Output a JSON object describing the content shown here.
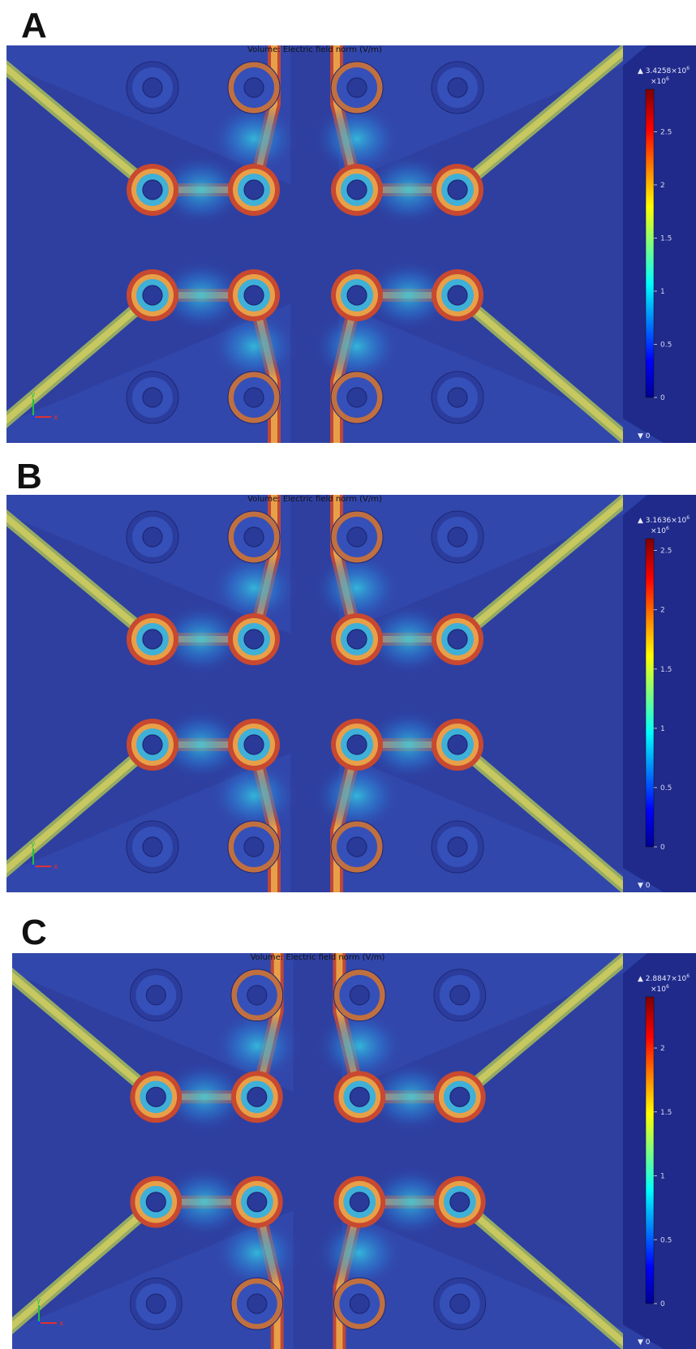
{
  "panels": [
    {
      "letter": "A",
      "title": "Volume: Electric field norm (V/m)",
      "cb_max": "▲ 3.4258×10",
      "cb_max_exp": "6",
      "cb_mult": "×10",
      "cb_mult_exp": "6",
      "cb_min": "▼ 0",
      "ticks": [
        {
          "label": "2.5",
          "value": 2.5
        },
        {
          "label": "2",
          "value": 2.0
        },
        {
          "label": "1.5",
          "value": 1.5
        },
        {
          "label": "1",
          "value": 1.0
        },
        {
          "label": "0.5",
          "value": 0.5
        },
        {
          "label": "0",
          "value": 0.0
        }
      ],
      "cb_top_value": 2.9,
      "axis_y": "y",
      "axis_x": "x"
    },
    {
      "letter": "B",
      "title": "Volume: Electric field norm (V/m)",
      "cb_max": "▲ 3.1636×10",
      "cb_max_exp": "6",
      "cb_mult": "×10",
      "cb_mult_exp": "6",
      "cb_min": "▼ 0",
      "ticks": [
        {
          "label": "2.5",
          "value": 2.5
        },
        {
          "label": "2",
          "value": 2.0
        },
        {
          "label": "1.5",
          "value": 1.5
        },
        {
          "label": "1",
          "value": 1.0
        },
        {
          "label": "0.5",
          "value": 0.5
        },
        {
          "label": "0",
          "value": 0.0
        }
      ],
      "cb_top_value": 2.6,
      "axis_y": "y",
      "axis_x": "x"
    },
    {
      "letter": "C",
      "title": "Volume: Electric field norm (V/m)",
      "cb_max": "▲ 2.8847×10",
      "cb_max_exp": "6",
      "cb_mult": "×10",
      "cb_mult_exp": "6",
      "cb_min": "▼ 0",
      "ticks": [
        {
          "label": "2",
          "value": 2.0
        },
        {
          "label": "1.5",
          "value": 1.5
        },
        {
          "label": "1",
          "value": 1.0
        },
        {
          "label": "0.5",
          "value": 0.5
        },
        {
          "label": "0",
          "value": 0.0
        }
      ],
      "cb_top_value": 2.4,
      "axis_y": "y",
      "axis_x": "x"
    }
  ],
  "colors": {
    "background_field": "#2e3fa0",
    "colorbar_panel": "#1f2a8a",
    "trace_hot": "#d8583a",
    "trace_warm": "#e8c060",
    "trace_glow": "#3fc0d8",
    "pad_hole": "#2a3a98"
  }
}
